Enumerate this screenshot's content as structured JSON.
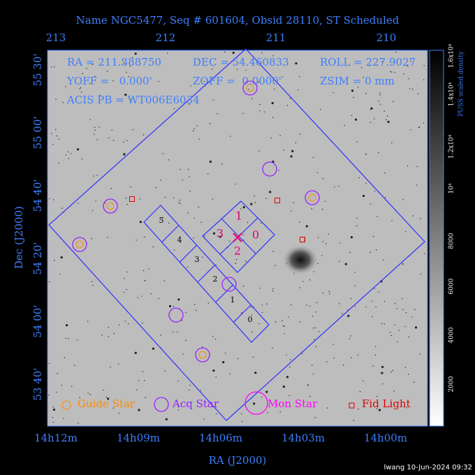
{
  "title": "Name NGC5477, Seq # 601604, Obsid 28110, ST Scheduled",
  "info": [
    "RA = 211.388750",
    "DEC = 54.460833",
    "ROLL = 227.9027",
    "YOFF =   0.000'",
    "ZOFF =  0.0000'",
    "ZSIM = 0 mm",
    "ACIS PB = WT006E6034"
  ],
  "top_axis": {
    "ticks": [
      "213",
      "212",
      "211",
      "210"
    ]
  },
  "bottom_axis": {
    "label": "RA (J2000)",
    "ticks": [
      "14h12m",
      "14h09m",
      "14h06m",
      "14h03m",
      "14h00m"
    ]
  },
  "left_axis": {
    "label": "Dec (J2000)",
    "ticks": [
      "55 30'",
      "55 00'",
      "54 40'",
      "54 20'",
      "54 00'",
      "53 40'"
    ]
  },
  "colorbar": {
    "label": "PUSS scaled density",
    "ticks": [
      "1.6x10⁴",
      "1.4x10⁴",
      "1.2x10⁴",
      "10⁴",
      "8000",
      "6000",
      "4000",
      "2000"
    ]
  },
  "chips": {
    "acis_i": [
      "0",
      "1",
      "2",
      "3"
    ],
    "acis_s": [
      "0",
      "1",
      "2",
      "3",
      "4",
      "5"
    ]
  },
  "legend": [
    "Guide Star",
    "Acq Star",
    "Mon Star",
    "Fid Light"
  ],
  "footer": "lwang 10-Jun-2024 09:32"
}
